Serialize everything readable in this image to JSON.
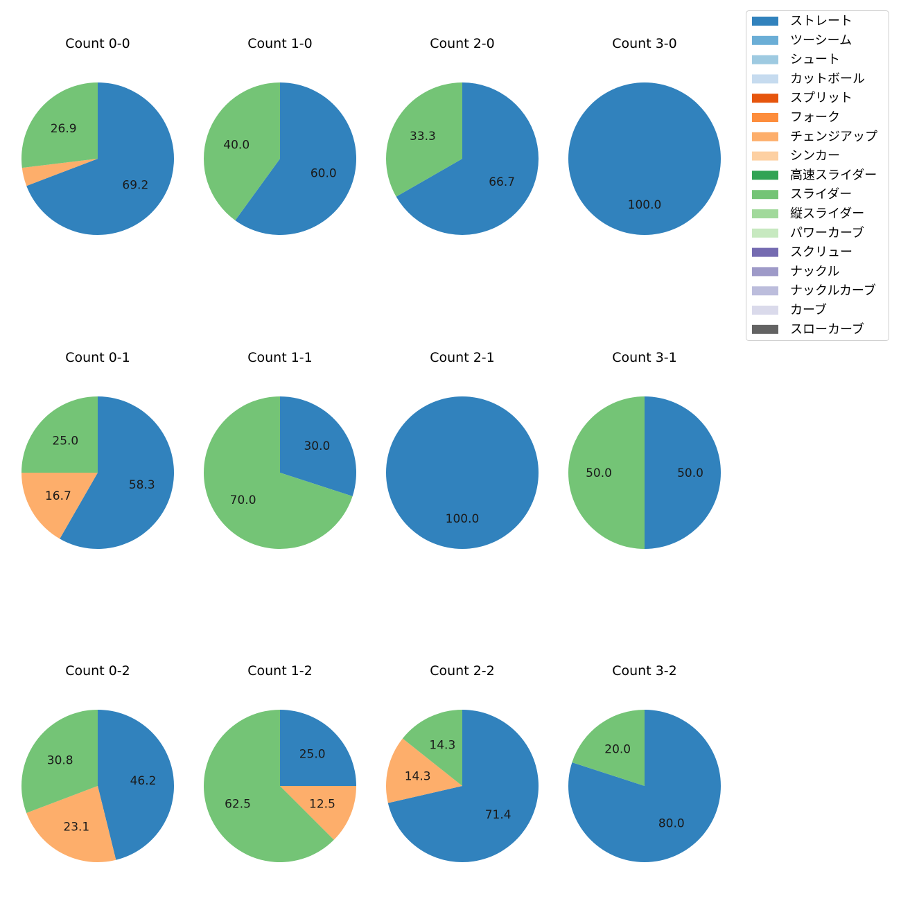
{
  "chart_data": {
    "type": "pie",
    "legend_placement": "top-right",
    "legend": [
      {
        "name": "ストレート",
        "color": "#3182bd"
      },
      {
        "name": "ツーシーム",
        "color": "#6baed6"
      },
      {
        "name": "シュート",
        "color": "#9ecae1"
      },
      {
        "name": "カットボール",
        "color": "#c6dbef"
      },
      {
        "name": "スプリット",
        "color": "#e6550d"
      },
      {
        "name": "フォーク",
        "color": "#fd8d3c"
      },
      {
        "name": "チェンジアップ",
        "color": "#fdae6b"
      },
      {
        "name": "シンカー",
        "color": "#fdd0a2"
      },
      {
        "name": "高速スライダー",
        "color": "#31a354"
      },
      {
        "name": "スライダー",
        "color": "#74c476"
      },
      {
        "name": "縦スライダー",
        "color": "#a1d99b"
      },
      {
        "name": "パワーカーブ",
        "color": "#c7e9c0"
      },
      {
        "name": "スクリュー",
        "color": "#756bb1"
      },
      {
        "name": "ナックル",
        "color": "#9e9ac8"
      },
      {
        "name": "ナックルカーブ",
        "color": "#bcbddc"
      },
      {
        "name": "カーブ",
        "color": "#dadaeb"
      },
      {
        "name": "スローカーブ",
        "color": "#636363"
      }
    ],
    "charts": [
      {
        "title": "Count 0-0",
        "slices": [
          {
            "pitch": "ストレート",
            "value": 69.2,
            "label": "69.2"
          },
          {
            "pitch": "チェンジアップ",
            "value": 3.9,
            "label": ""
          },
          {
            "pitch": "スライダー",
            "value": 26.9,
            "label": "26.9"
          }
        ]
      },
      {
        "title": "Count 1-0",
        "slices": [
          {
            "pitch": "ストレート",
            "value": 60.0,
            "label": "60.0"
          },
          {
            "pitch": "スライダー",
            "value": 40.0,
            "label": "40.0"
          }
        ]
      },
      {
        "title": "Count 2-0",
        "slices": [
          {
            "pitch": "ストレート",
            "value": 66.7,
            "label": "66.7"
          },
          {
            "pitch": "スライダー",
            "value": 33.3,
            "label": "33.3"
          }
        ]
      },
      {
        "title": "Count 3-0",
        "slices": [
          {
            "pitch": "ストレート",
            "value": 100.0,
            "label": "100.0"
          }
        ]
      },
      {
        "title": "Count 0-1",
        "slices": [
          {
            "pitch": "ストレート",
            "value": 58.3,
            "label": "58.3"
          },
          {
            "pitch": "チェンジアップ",
            "value": 16.7,
            "label": "16.7"
          },
          {
            "pitch": "スライダー",
            "value": 25.0,
            "label": "25.0"
          }
        ]
      },
      {
        "title": "Count 1-1",
        "slices": [
          {
            "pitch": "ストレート",
            "value": 30.0,
            "label": "30.0"
          },
          {
            "pitch": "スライダー",
            "value": 70.0,
            "label": "70.0"
          }
        ]
      },
      {
        "title": "Count 2-1",
        "slices": [
          {
            "pitch": "ストレート",
            "value": 100.0,
            "label": "100.0"
          }
        ]
      },
      {
        "title": "Count 3-1",
        "slices": [
          {
            "pitch": "ストレート",
            "value": 50.0,
            "label": "50.0"
          },
          {
            "pitch": "スライダー",
            "value": 50.0,
            "label": "50.0"
          }
        ]
      },
      {
        "title": "Count 0-2",
        "slices": [
          {
            "pitch": "ストレート",
            "value": 46.2,
            "label": "46.2"
          },
          {
            "pitch": "チェンジアップ",
            "value": 23.1,
            "label": "23.1"
          },
          {
            "pitch": "スライダー",
            "value": 30.8,
            "label": "30.8"
          }
        ]
      },
      {
        "title": "Count 1-2",
        "slices": [
          {
            "pitch": "ストレート",
            "value": 25.0,
            "label": "25.0"
          },
          {
            "pitch": "チェンジアップ",
            "value": 12.5,
            "label": "12.5"
          },
          {
            "pitch": "スライダー",
            "value": 62.5,
            "label": "62.5"
          }
        ]
      },
      {
        "title": "Count 2-2",
        "slices": [
          {
            "pitch": "ストレート",
            "value": 71.4,
            "label": "71.4"
          },
          {
            "pitch": "チェンジアップ",
            "value": 14.3,
            "label": "14.3"
          },
          {
            "pitch": "スライダー",
            "value": 14.3,
            "label": "14.3"
          }
        ]
      },
      {
        "title": "Count 3-2",
        "slices": [
          {
            "pitch": "ストレート",
            "value": 80.0,
            "label": "80.0"
          },
          {
            "pitch": "スライダー",
            "value": 20.0,
            "label": "20.0"
          }
        ]
      }
    ]
  }
}
